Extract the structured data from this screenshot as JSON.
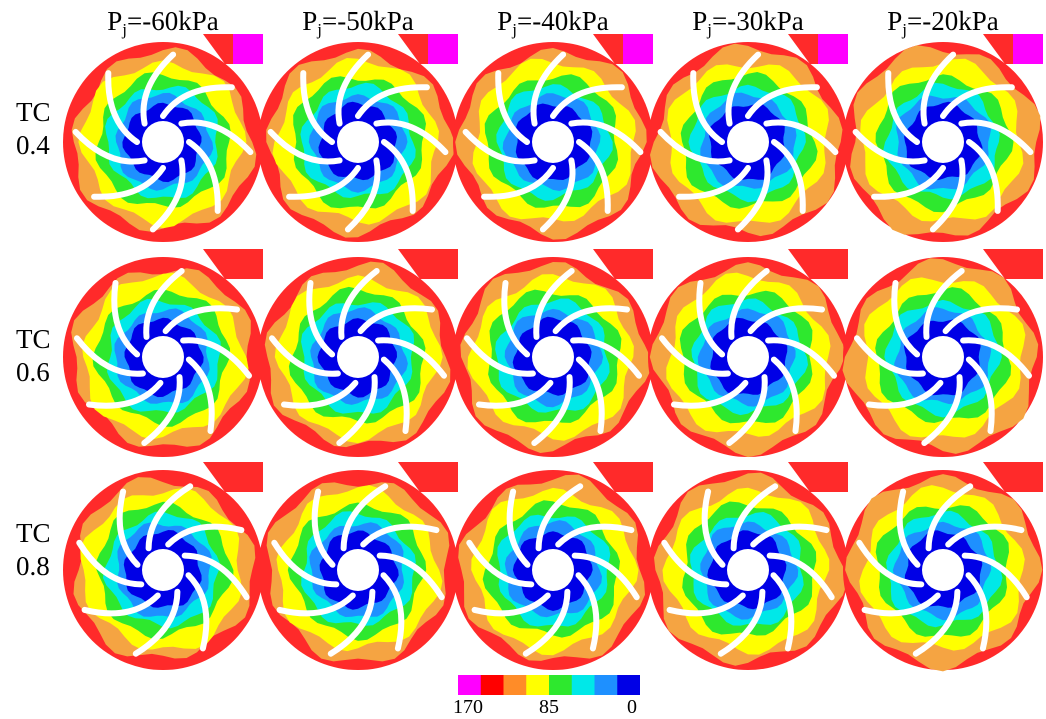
{
  "columns": [
    {
      "prefix": "P",
      "sub": "j",
      "value": "=-60kPa"
    },
    {
      "prefix": "P",
      "sub": "j",
      "value": "=-50kPa"
    },
    {
      "prefix": "P",
      "sub": "j",
      "value": "=-40kPa"
    },
    {
      "prefix": "P",
      "sub": "j",
      "value": "=-30kPa"
    },
    {
      "prefix": "P",
      "sub": "j",
      "value": "=-20kPa"
    }
  ],
  "rows": [
    {
      "line1": "TC",
      "line2": "0.4"
    },
    {
      "line1": "TC",
      "line2": "0.6"
    },
    {
      "line1": "TC",
      "line2": "0.8"
    }
  ],
  "colorbar": {
    "min_label": "170",
    "mid_label": "85",
    "max_label": "0",
    "colors": [
      "#ff00ff",
      "#ff0000",
      "#ff8c28",
      "#ffff00",
      "#2ee82e",
      "#00e8e8",
      "#1e90ff",
      "#0000e6"
    ]
  },
  "field": {
    "hub_color": "#ffffff",
    "outer_color": "#f5a442",
    "red_color": "#ff2a2a",
    "magenta_color": "#ff00ff",
    "band_colors": [
      "#f5a442",
      "#ffff00",
      "#2ee82e",
      "#00e8e8",
      "#1e90ff",
      "#0000e6"
    ],
    "blade_count": 8
  }
}
